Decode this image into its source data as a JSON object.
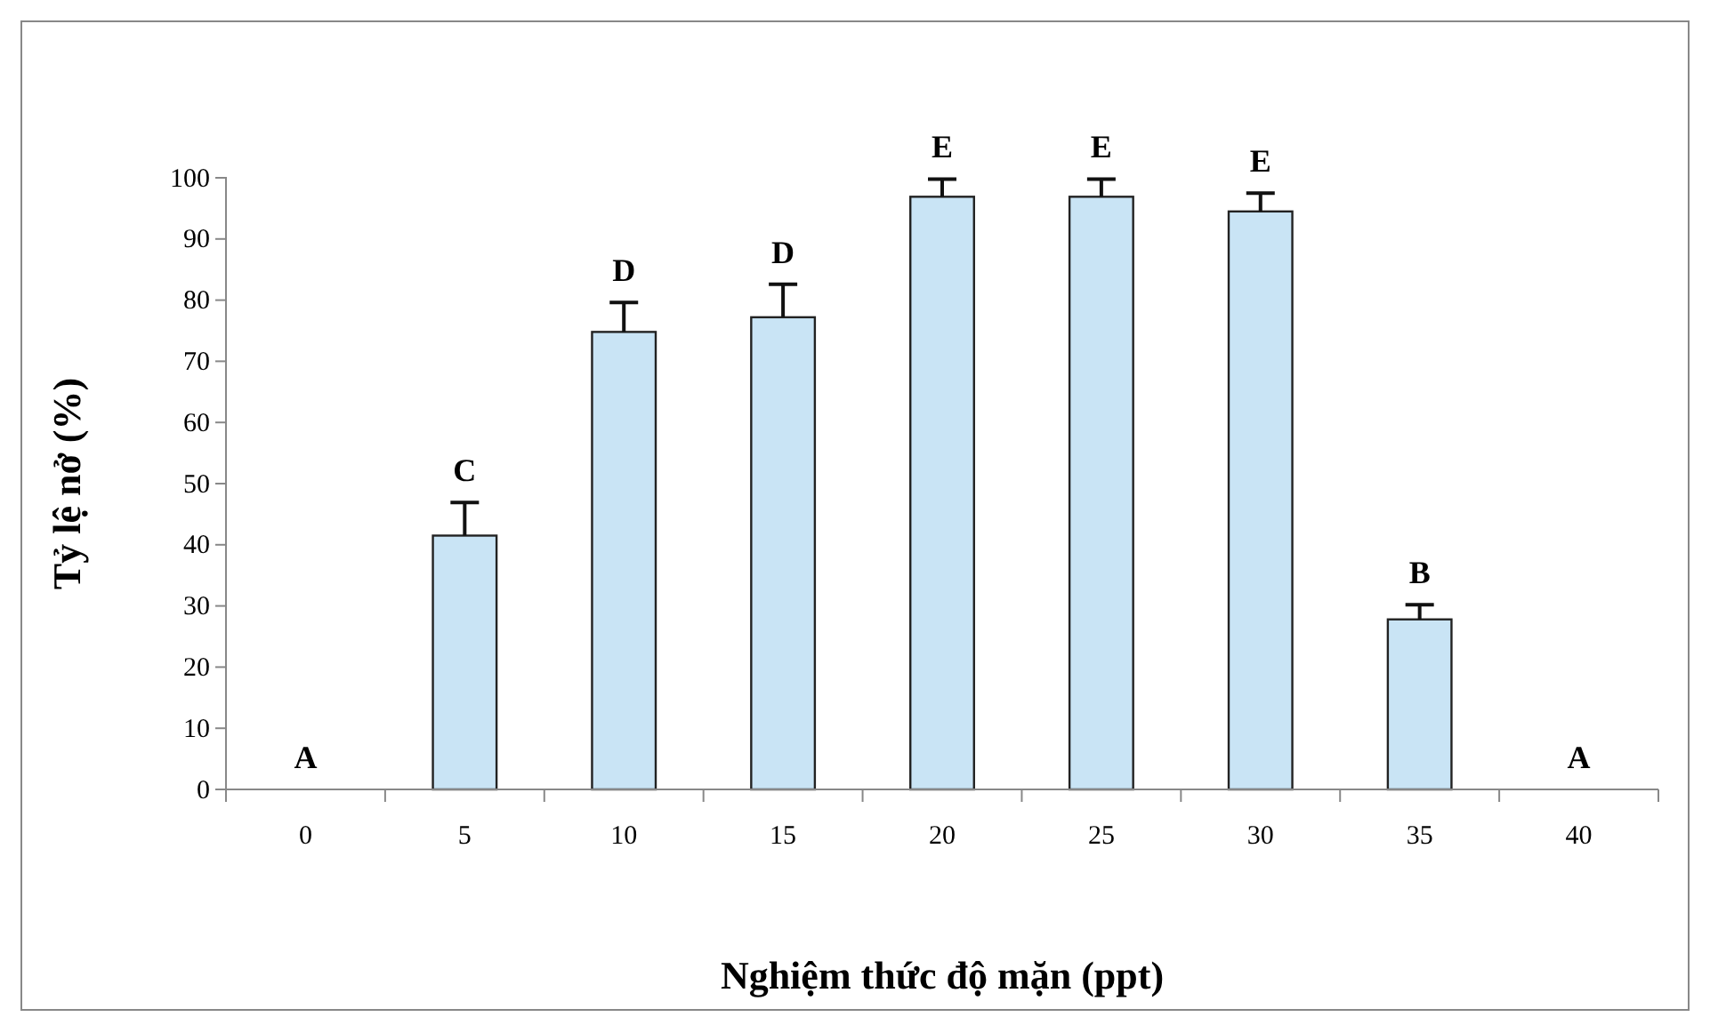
{
  "chart_data": {
    "type": "bar",
    "xlabel": "Nghiệm thức độ mặn (ppt)",
    "ylabel": "Tỷ lệ nở (%)",
    "categories": [
      "0",
      "5",
      "10",
      "15",
      "20",
      "25",
      "30",
      "35",
      "40"
    ],
    "values": [
      0,
      41.5,
      74.8,
      77.2,
      96.9,
      96.9,
      94.5,
      27.8,
      0
    ],
    "errors": [
      null,
      [
        41.5,
        46.9
      ],
      [
        74.8,
        79.6
      ],
      [
        77.2,
        82.6
      ],
      [
        96.9,
        99.8
      ],
      [
        96.9,
        99.8
      ],
      [
        94.5,
        97.5
      ],
      [
        27.8,
        30.2
      ],
      null
    ],
    "color": "#c9e4f5",
    "ylim": [
      0,
      100
    ],
    "yticks": [
      0,
      10,
      20,
      30,
      40,
      50,
      60,
      70,
      80,
      90,
      100
    ],
    "grid": false,
    "annotations": [
      {
        "text": "A",
        "x": "0",
        "y": 0
      },
      {
        "text": "C",
        "x": "5",
        "y": 46.9
      },
      {
        "text": "D",
        "x": "10",
        "y": 79.6
      },
      {
        "text": "D",
        "x": "15",
        "y": 82.6
      },
      {
        "text": "E",
        "x": "20",
        "y": 99.8
      },
      {
        "text": "E",
        "x": "25",
        "y": 99.8
      },
      {
        "text": "E",
        "x": "30",
        "y": 97.5
      },
      {
        "text": "B",
        "x": "35",
        "y": 30.2
      },
      {
        "text": "A",
        "x": "40",
        "y": 0
      }
    ]
  }
}
